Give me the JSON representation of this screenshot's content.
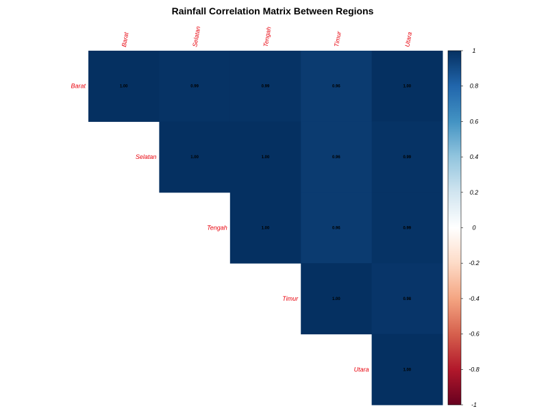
{
  "chart_data": {
    "type": "heatmap",
    "title": "Rainfall Correlation Matrix Between Regions",
    "variables": [
      "Barat",
      "Selatan",
      "Tengah",
      "Timur",
      "Utara"
    ],
    "triangle": "upper",
    "cell_labels": [
      [
        "1.00",
        "0.99",
        "0.99",
        "0.96",
        "1.00"
      ],
      [
        "",
        "1.00",
        "1.00",
        "0.96",
        "0.99"
      ],
      [
        "",
        "",
        "1.00",
        "0.96",
        "0.99"
      ],
      [
        "",
        "",
        "",
        "1.00",
        "0.98"
      ],
      [
        "",
        "",
        "",
        "",
        "1.00"
      ]
    ],
    "values": [
      [
        1.0,
        0.99,
        0.99,
        0.96,
        1.0
      ],
      [
        null,
        1.0,
        1.0,
        0.96,
        0.99
      ],
      [
        null,
        null,
        1.0,
        0.96,
        0.99
      ],
      [
        null,
        null,
        null,
        1.0,
        0.98
      ],
      [
        null,
        null,
        null,
        null,
        1.0
      ]
    ],
    "colorbar": {
      "range": [
        -1,
        1
      ],
      "ticks": [
        "1",
        "0.8",
        "0.6",
        "0.4",
        "0.2",
        "0",
        "-0.2",
        "-0.4",
        "-0.6",
        "-0.8",
        "-1"
      ],
      "tick_values": [
        1,
        0.8,
        0.6,
        0.4,
        0.2,
        0,
        -0.2,
        -0.4,
        -0.6,
        -0.8,
        -1
      ]
    },
    "colors": {
      "label_color": "#e8000b",
      "palette_low": "#67001f",
      "palette_mid": "#ffffff",
      "palette_high": "#053061"
    }
  }
}
